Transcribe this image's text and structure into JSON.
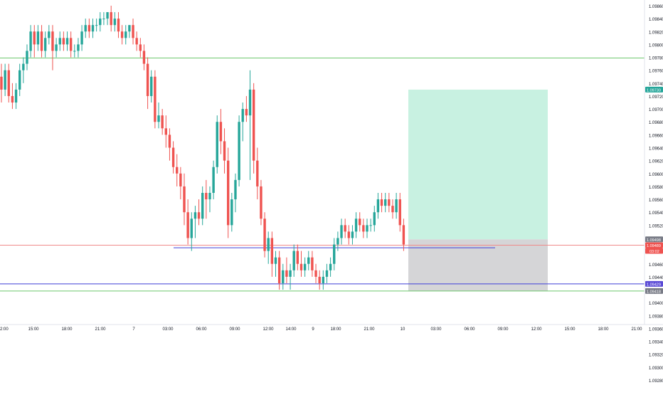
{
  "chart_data": {
    "type": "candlestick",
    "instrument": "EURUSD",
    "y_axis": {
      "min": 1.0928,
      "max": 1.0988,
      "ticks": [
        1.0986,
        1.0984,
        1.0982,
        1.098,
        1.0978,
        1.0976,
        1.0974,
        1.0972,
        1.097,
        1.0968,
        1.0966,
        1.0964,
        1.0962,
        1.096,
        1.0958,
        1.0956,
        1.0954,
        1.0952,
        1.095,
        1.0948,
        1.0946,
        1.0944,
        1.0942,
        1.094,
        1.0938,
        1.0936,
        1.0934,
        1.0932,
        1.093,
        1.0928
      ],
      "tick_labels": [
        "1.09860",
        "1.09840",
        "1.09820",
        "1.09800",
        "1.09780",
        "1.09760",
        "1.09740",
        "1.09720",
        "1.09700",
        "1.09680",
        "1.09660",
        "1.09640",
        "1.09620",
        "1.09600",
        "1.09580",
        "1.09560",
        "1.09540",
        "1.09520",
        "1.09500",
        "1.09480",
        "1.09460",
        "1.09440",
        "1.09420",
        "1.09400",
        "1.09380",
        "1.09360",
        "1.09340",
        "1.09320",
        "1.09300",
        "1.09280"
      ]
    },
    "x_axis": {
      "tick_labels": [
        "2:00",
        "15:00",
        "18:00",
        "21:00",
        "7",
        "03:00",
        "06:00",
        "09:00",
        "12:00",
        "14:00",
        "9",
        "18:00",
        "21:00",
        "10",
        "03:00",
        "06:00",
        "09:00",
        "12:00",
        "15:00",
        "18:00",
        "21:00"
      ]
    },
    "price_labels": {
      "target": "1.09730",
      "entry": "1.09498",
      "current": "1.09489",
      "countdown": "03:02",
      "blue_line": "1.09429",
      "stop": "1.09418"
    },
    "levels": {
      "green_upper": 1.09779,
      "green_lower": 1.09418,
      "blue_line": 1.09429,
      "current_price": 1.09489,
      "blue_segment": 1.09485
    },
    "position": {
      "direction": "long",
      "entry": 1.09498,
      "target": 1.0973,
      "stop": 1.09418
    },
    "candles": [
      [
        1.0975,
        1.0977,
        1.0971,
        1.0973
      ],
      [
        1.0973,
        1.0977,
        1.0972,
        1.0976
      ],
      [
        1.0976,
        1.0977,
        1.0971,
        1.0972
      ],
      [
        1.0972,
        1.0974,
        1.097,
        1.0971
      ],
      [
        1.0971,
        1.0974,
        1.097,
        1.0973
      ],
      [
        1.0973,
        1.0977,
        1.0972,
        1.0976
      ],
      [
        1.0976,
        1.0978,
        1.0974,
        1.0977
      ],
      [
        1.0977,
        1.098,
        1.0976,
        1.0979
      ],
      [
        1.0979,
        1.0983,
        1.0978,
        1.0982
      ],
      [
        1.0982,
        1.0983,
        1.0978,
        1.098
      ],
      [
        1.098,
        1.0983,
        1.0979,
        1.0982
      ],
      [
        1.0982,
        1.0983,
        1.0978,
        1.0979
      ],
      [
        1.0979,
        1.0982,
        1.0978,
        1.0981
      ],
      [
        1.0981,
        1.0983,
        1.098,
        1.0982
      ],
      [
        1.0982,
        1.0983,
        1.0976,
        1.0979
      ],
      [
        1.0979,
        1.0981,
        1.0978,
        1.098
      ],
      [
        1.098,
        1.0982,
        1.0979,
        1.0981
      ],
      [
        1.0981,
        1.0982,
        1.0979,
        1.098
      ],
      [
        1.098,
        1.0982,
        1.0979,
        1.0981
      ],
      [
        1.0981,
        1.0982,
        1.0978,
        1.0979
      ],
      [
        1.0979,
        1.098,
        1.0978,
        1.0979
      ],
      [
        1.0979,
        1.0981,
        1.0978,
        1.098
      ],
      [
        1.098,
        1.0983,
        1.0979,
        1.0982
      ],
      [
        1.0982,
        1.0984,
        1.0981,
        1.0983
      ],
      [
        1.0983,
        1.0984,
        1.0981,
        1.0982
      ],
      [
        1.0982,
        1.0984,
        1.0981,
        1.0983
      ],
      [
        1.0983,
        1.0984,
        1.0982,
        1.0983
      ],
      [
        1.0983,
        1.0985,
        1.0982,
        1.0984
      ],
      [
        1.0984,
        1.0985,
        1.0983,
        1.0984
      ],
      [
        1.0984,
        1.0985,
        1.0983,
        1.0985
      ],
      [
        1.0985,
        1.0986,
        1.0982,
        1.0983
      ],
      [
        1.0983,
        1.0985,
        1.0982,
        1.0984
      ],
      [
        1.0984,
        1.0985,
        1.0981,
        1.0982
      ],
      [
        1.0982,
        1.0983,
        1.098,
        1.0981
      ],
      [
        1.0981,
        1.0983,
        1.098,
        1.0982
      ],
      [
        1.0982,
        1.0983,
        1.0981,
        1.0983
      ],
      [
        1.0983,
        1.0984,
        1.098,
        1.0981
      ],
      [
        1.0981,
        1.0982,
        1.0979,
        1.098
      ],
      [
        1.098,
        1.0981,
        1.0978,
        1.0979
      ],
      [
        1.0979,
        1.098,
        1.0976,
        1.0977
      ],
      [
        1.0977,
        1.0978,
        1.097,
        1.0972
      ],
      [
        1.0972,
        1.0976,
        1.0971,
        1.0975
      ],
      [
        1.0975,
        1.0976,
        1.0967,
        1.0968
      ],
      [
        1.0968,
        1.0971,
        1.0967,
        1.0969
      ],
      [
        1.0969,
        1.097,
        1.0966,
        1.0967
      ],
      [
        1.0967,
        1.0969,
        1.0964,
        1.0966
      ],
      [
        1.0966,
        1.0967,
        1.0962,
        1.0964
      ],
      [
        1.0964,
        1.0965,
        1.096,
        1.0961
      ],
      [
        1.0961,
        1.0963,
        1.0958,
        1.096
      ],
      [
        1.096,
        1.0961,
        1.0956,
        1.0958
      ],
      [
        1.0958,
        1.096,
        1.0952,
        1.0954
      ],
      [
        1.0954,
        1.0956,
        1.0949,
        1.095
      ],
      [
        1.095,
        1.0954,
        1.0948,
        1.0953
      ],
      [
        1.0953,
        1.0955,
        1.095,
        1.0954
      ],
      [
        1.0954,
        1.0956,
        1.0952,
        1.0953
      ],
      [
        1.0953,
        1.0958,
        1.0952,
        1.0957
      ],
      [
        1.0957,
        1.0959,
        1.0953,
        1.0956
      ],
      [
        1.0956,
        1.0958,
        1.0954,
        1.0957
      ],
      [
        1.0957,
        1.0962,
        1.0956,
        1.0961
      ],
      [
        1.0961,
        1.0969,
        1.096,
        1.0968
      ],
      [
        1.0968,
        1.097,
        1.0963,
        1.0965
      ],
      [
        1.0965,
        1.0967,
        1.096,
        1.0962
      ],
      [
        1.0962,
        1.0964,
        1.095,
        1.0952
      ],
      [
        1.0952,
        1.0957,
        1.0951,
        1.0956
      ],
      [
        1.0956,
        1.096,
        1.0954,
        1.0959
      ],
      [
        1.0959,
        1.0969,
        1.0958,
        1.0968
      ],
      [
        1.0968,
        1.0971,
        1.0965,
        1.097
      ],
      [
        1.097,
        1.0972,
        1.0968,
        1.0969
      ],
      [
        1.0969,
        1.0976,
        1.0959,
        1.0973
      ],
      [
        1.0973,
        1.0974,
        1.096,
        1.0962
      ],
      [
        1.0962,
        1.0964,
        1.0956,
        1.0958
      ],
      [
        1.0958,
        1.0959,
        1.0952,
        1.0953
      ],
      [
        1.0953,
        1.0954,
        1.0947,
        1.0948
      ],
      [
        1.0948,
        1.0951,
        1.0946,
        1.095
      ],
      [
        1.095,
        1.0951,
        1.0944,
        1.0946
      ],
      [
        1.0946,
        1.0948,
        1.0944,
        1.0947
      ],
      [
        1.0947,
        1.0948,
        1.0942,
        1.0943
      ],
      [
        1.0943,
        1.0946,
        1.0942,
        1.0945
      ],
      [
        1.0945,
        1.0947,
        1.0943,
        1.0944
      ],
      [
        1.0944,
        1.0946,
        1.0942,
        1.0945
      ],
      [
        1.0945,
        1.0949,
        1.0944,
        1.0948
      ],
      [
        1.0948,
        1.0949,
        1.0945,
        1.0946
      ],
      [
        1.0946,
        1.0948,
        1.0944,
        1.0945
      ],
      [
        1.0945,
        1.0947,
        1.0944,
        1.0946
      ],
      [
        1.0946,
        1.0948,
        1.0945,
        1.0947
      ],
      [
        1.0947,
        1.0948,
        1.0944,
        1.0945
      ],
      [
        1.0945,
        1.0946,
        1.0943,
        1.0944
      ],
      [
        1.0944,
        1.0945,
        1.0942,
        1.0943
      ],
      [
        1.0943,
        1.0945,
        1.0942,
        1.0944
      ],
      [
        1.0944,
        1.0946,
        1.0943,
        1.0945
      ],
      [
        1.0945,
        1.0947,
        1.0944,
        1.0946
      ],
      [
        1.0946,
        1.095,
        1.0945,
        1.0949
      ],
      [
        1.0949,
        1.0951,
        1.0948,
        1.095
      ],
      [
        1.095,
        1.0953,
        1.0949,
        1.0952
      ],
      [
        1.0952,
        1.0953,
        1.095,
        1.0951
      ],
      [
        1.0951,
        1.0952,
        1.0949,
        1.095
      ],
      [
        1.095,
        1.0952,
        1.0949,
        1.0951
      ],
      [
        1.0951,
        1.0954,
        1.095,
        1.0953
      ],
      [
        1.0953,
        1.0954,
        1.0951,
        1.0952
      ],
      [
        1.0952,
        1.0953,
        1.095,
        1.0951
      ],
      [
        1.0951,
        1.0953,
        1.095,
        1.0952
      ],
      [
        1.0952,
        1.0953,
        1.0951,
        1.0952
      ],
      [
        1.0952,
        1.0955,
        1.0951,
        1.0954
      ],
      [
        1.0954,
        1.0957,
        1.0953,
        1.0956
      ],
      [
        1.0956,
        1.0957,
        1.0954,
        1.0955
      ],
      [
        1.0955,
        1.0957,
        1.0954,
        1.0956
      ],
      [
        1.0956,
        1.0957,
        1.0954,
        1.0955
      ],
      [
        1.0955,
        1.0956,
        1.0953,
        1.0954
      ],
      [
        1.0954,
        1.0957,
        1.0953,
        1.0956
      ],
      [
        1.0956,
        1.0957,
        1.0951,
        1.0952
      ],
      [
        1.0952,
        1.0953,
        1.0948,
        1.0949
      ]
    ]
  }
}
